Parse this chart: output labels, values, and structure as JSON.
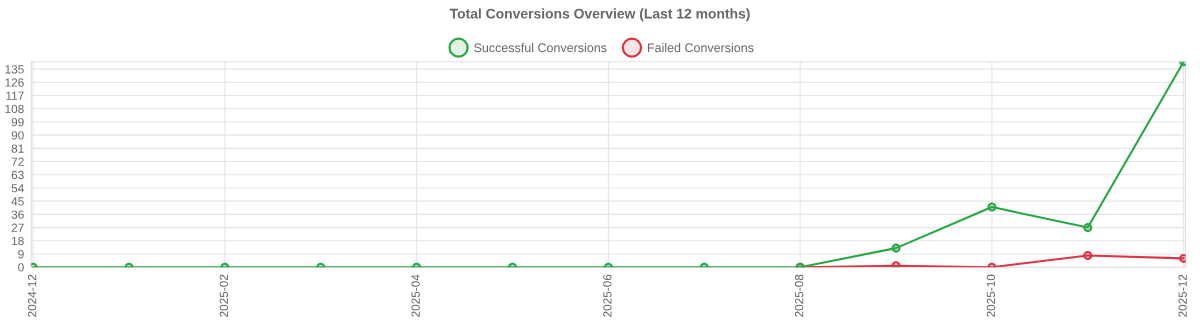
{
  "chart_data": {
    "type": "line",
    "title": "Total Conversions Overview (Last 12 months)",
    "categories": [
      "2024-12",
      null,
      "2025-02",
      null,
      "2025-04",
      null,
      "2025-06",
      null,
      "2025-08",
      null,
      "2025-10",
      null,
      "2025-12"
    ],
    "series": [
      {
        "name": "Successful Conversions",
        "color": "#28a745",
        "values": [
          0,
          0,
          0,
          0,
          0,
          0,
          0,
          0,
          0,
          13,
          41,
          27,
          140
        ]
      },
      {
        "name": "Failed Conversions",
        "color": "#dc3545",
        "values": [
          null,
          null,
          null,
          null,
          null,
          null,
          null,
          null,
          0,
          1,
          0,
          8,
          6
        ]
      }
    ],
    "ylim": [
      0,
      140
    ],
    "yticks": [
      0,
      9,
      18,
      27,
      36,
      45,
      54,
      63,
      72,
      81,
      90,
      99,
      108,
      117,
      126,
      135
    ],
    "grid": true,
    "legend": "top",
    "marker": "circle",
    "line_style": "solid"
  }
}
